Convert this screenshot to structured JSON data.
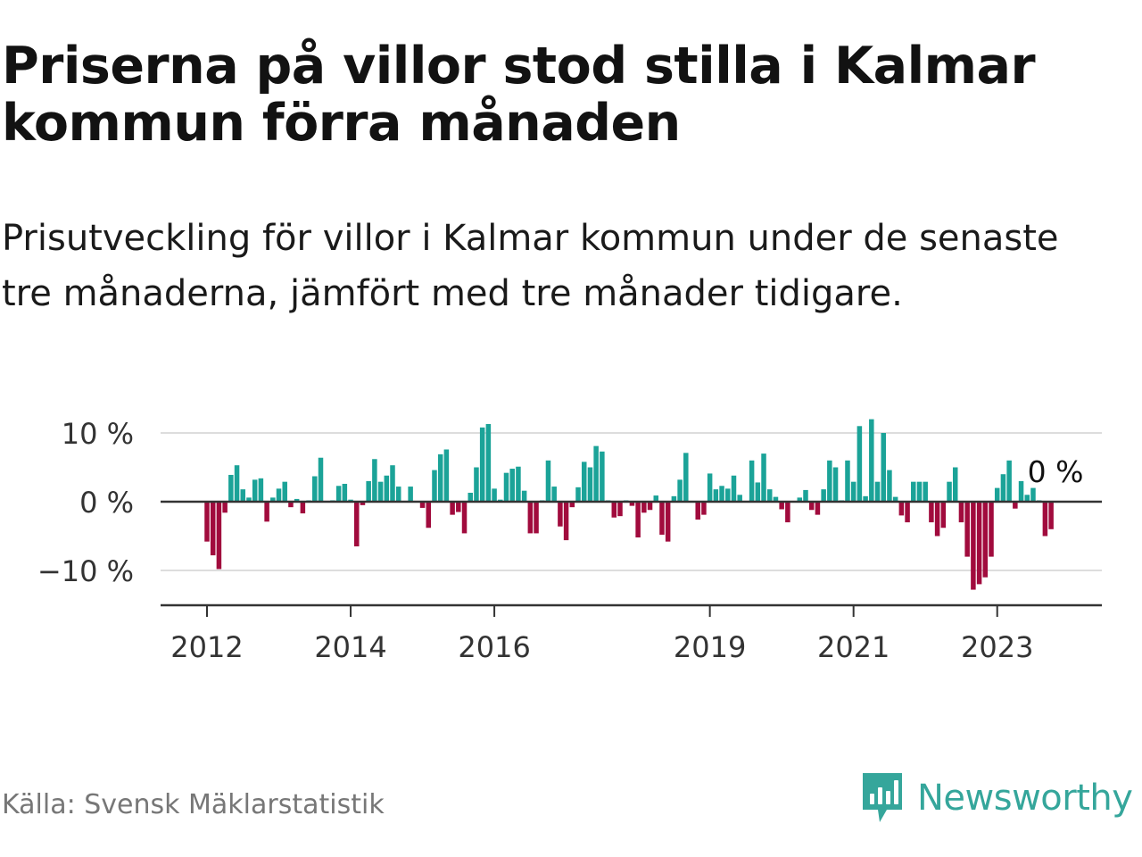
{
  "title": "Priserna på villor stod stilla i Kalmar kommun förra månaden",
  "subtitle": "Prisutveckling för villor i Kalmar kommun under de senaste tre månaderna, jämfört med tre månader tidigare.",
  "source": "Källa: Svensk Mäklarstatistik",
  "brand": "Newsworthy",
  "colors": {
    "positive": "#1ba398",
    "negative": "#a10b3d",
    "brand": "#35a69b"
  },
  "chart_data": {
    "type": "bar",
    "title": "Priserna på villor stod stilla i Kalmar kommun förra månaden",
    "xlabel": "",
    "ylabel": "",
    "ylim": [
      -15,
      12
    ],
    "y_ticks": [
      10,
      0,
      -10
    ],
    "y_tick_labels": [
      "10 %",
      "0 %",
      "−10 %"
    ],
    "x_ticks": [
      2012,
      2014,
      2016,
      2019,
      2021,
      2023
    ],
    "x_tick_labels": [
      "2012",
      "2014",
      "2016",
      "2019",
      "2021",
      "2023"
    ],
    "start": "2012-01",
    "last_value_label": "0 %",
    "values": [
      -5.8,
      -7.8,
      -9.8,
      -1.6,
      3.9,
      5.3,
      1.8,
      0.6,
      3.2,
      3.4,
      -2.9,
      0.6,
      1.9,
      2.9,
      -0.8,
      0.4,
      -1.7,
      0.2,
      3.7,
      6.4,
      0.1,
      0.2,
      2.3,
      2.6,
      0.3,
      -6.5,
      -0.5,
      3.0,
      6.2,
      2.9,
      3.8,
      5.3,
      2.2,
      0.1,
      2.2,
      0.1,
      -0.9,
      -3.8,
      4.6,
      6.9,
      7.6,
      -1.9,
      -1.5,
      -4.6,
      1.3,
      5.0,
      10.8,
      11.3,
      1.9,
      0.3,
      4.2,
      4.8,
      5.1,
      1.6,
      -4.6,
      -4.6,
      0.2,
      6.0,
      2.2,
      -3.6,
      -5.6,
      -0.8,
      2.1,
      5.8,
      5.0,
      8.1,
      7.3,
      0.2,
      -2.3,
      -2.1,
      0.2,
      -0.6,
      -5.2,
      -1.6,
      -1.2,
      0.9,
      -4.8,
      -5.8,
      0.8,
      3.2,
      7.1,
      0.1,
      -2.6,
      -1.9,
      4.1,
      1.8,
      2.3,
      1.9,
      3.8,
      1.0,
      0.1,
      6.0,
      2.8,
      7.0,
      1.8,
      0.7,
      -1.1,
      -3.0,
      0.1,
      0.6,
      1.7,
      -1.2,
      -1.9,
      1.8,
      6.0,
      5.0,
      0.2,
      6.0,
      2.9,
      11.0,
      0.8,
      12.0,
      2.9,
      10.0,
      4.6,
      0.7,
      -2.0,
      -3.0,
      2.9,
      2.9,
      2.9,
      -3.0,
      -5.0,
      -3.8,
      2.9,
      5.0,
      -3.0,
      -8.0,
      -12.8,
      -12.0,
      -11.0,
      -8.0,
      2.0,
      4.0,
      6.0,
      -1.0,
      3.0,
      1.0,
      2.0,
      0.2,
      -5.0,
      -4.0,
      0.0
    ]
  }
}
